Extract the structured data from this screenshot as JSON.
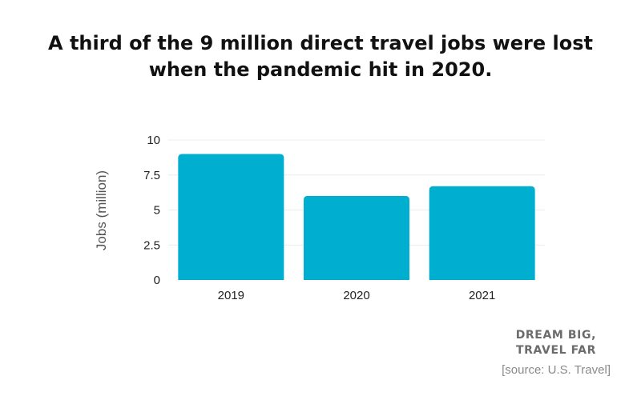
{
  "title": {
    "line1": "A third of the 9 million direct travel jobs were lost",
    "line2": "when the pandemic hit in 2020."
  },
  "chart_data": {
    "type": "bar",
    "title": "A third of the 9 million direct travel jobs were lost when the pandemic hit in 2020.",
    "categories": [
      "2019",
      "2020",
      "2021"
    ],
    "values": [
      9,
      6,
      6.7
    ],
    "xlabel": "",
    "ylabel": "Jobs (million)",
    "ylim": [
      0,
      10
    ],
    "yticks": [
      0,
      2.5,
      5,
      7.5,
      10
    ],
    "ytick_labels": [
      "0",
      "2.5",
      "5",
      "7.5",
      "10"
    ],
    "grid": true,
    "bar_color": "#00aecf",
    "grid_color": "#ececec"
  },
  "branding": {
    "line1": "DREAM BIG,",
    "line2": "TRAVEL FAR"
  },
  "source": "[source: U.S. Travel]"
}
